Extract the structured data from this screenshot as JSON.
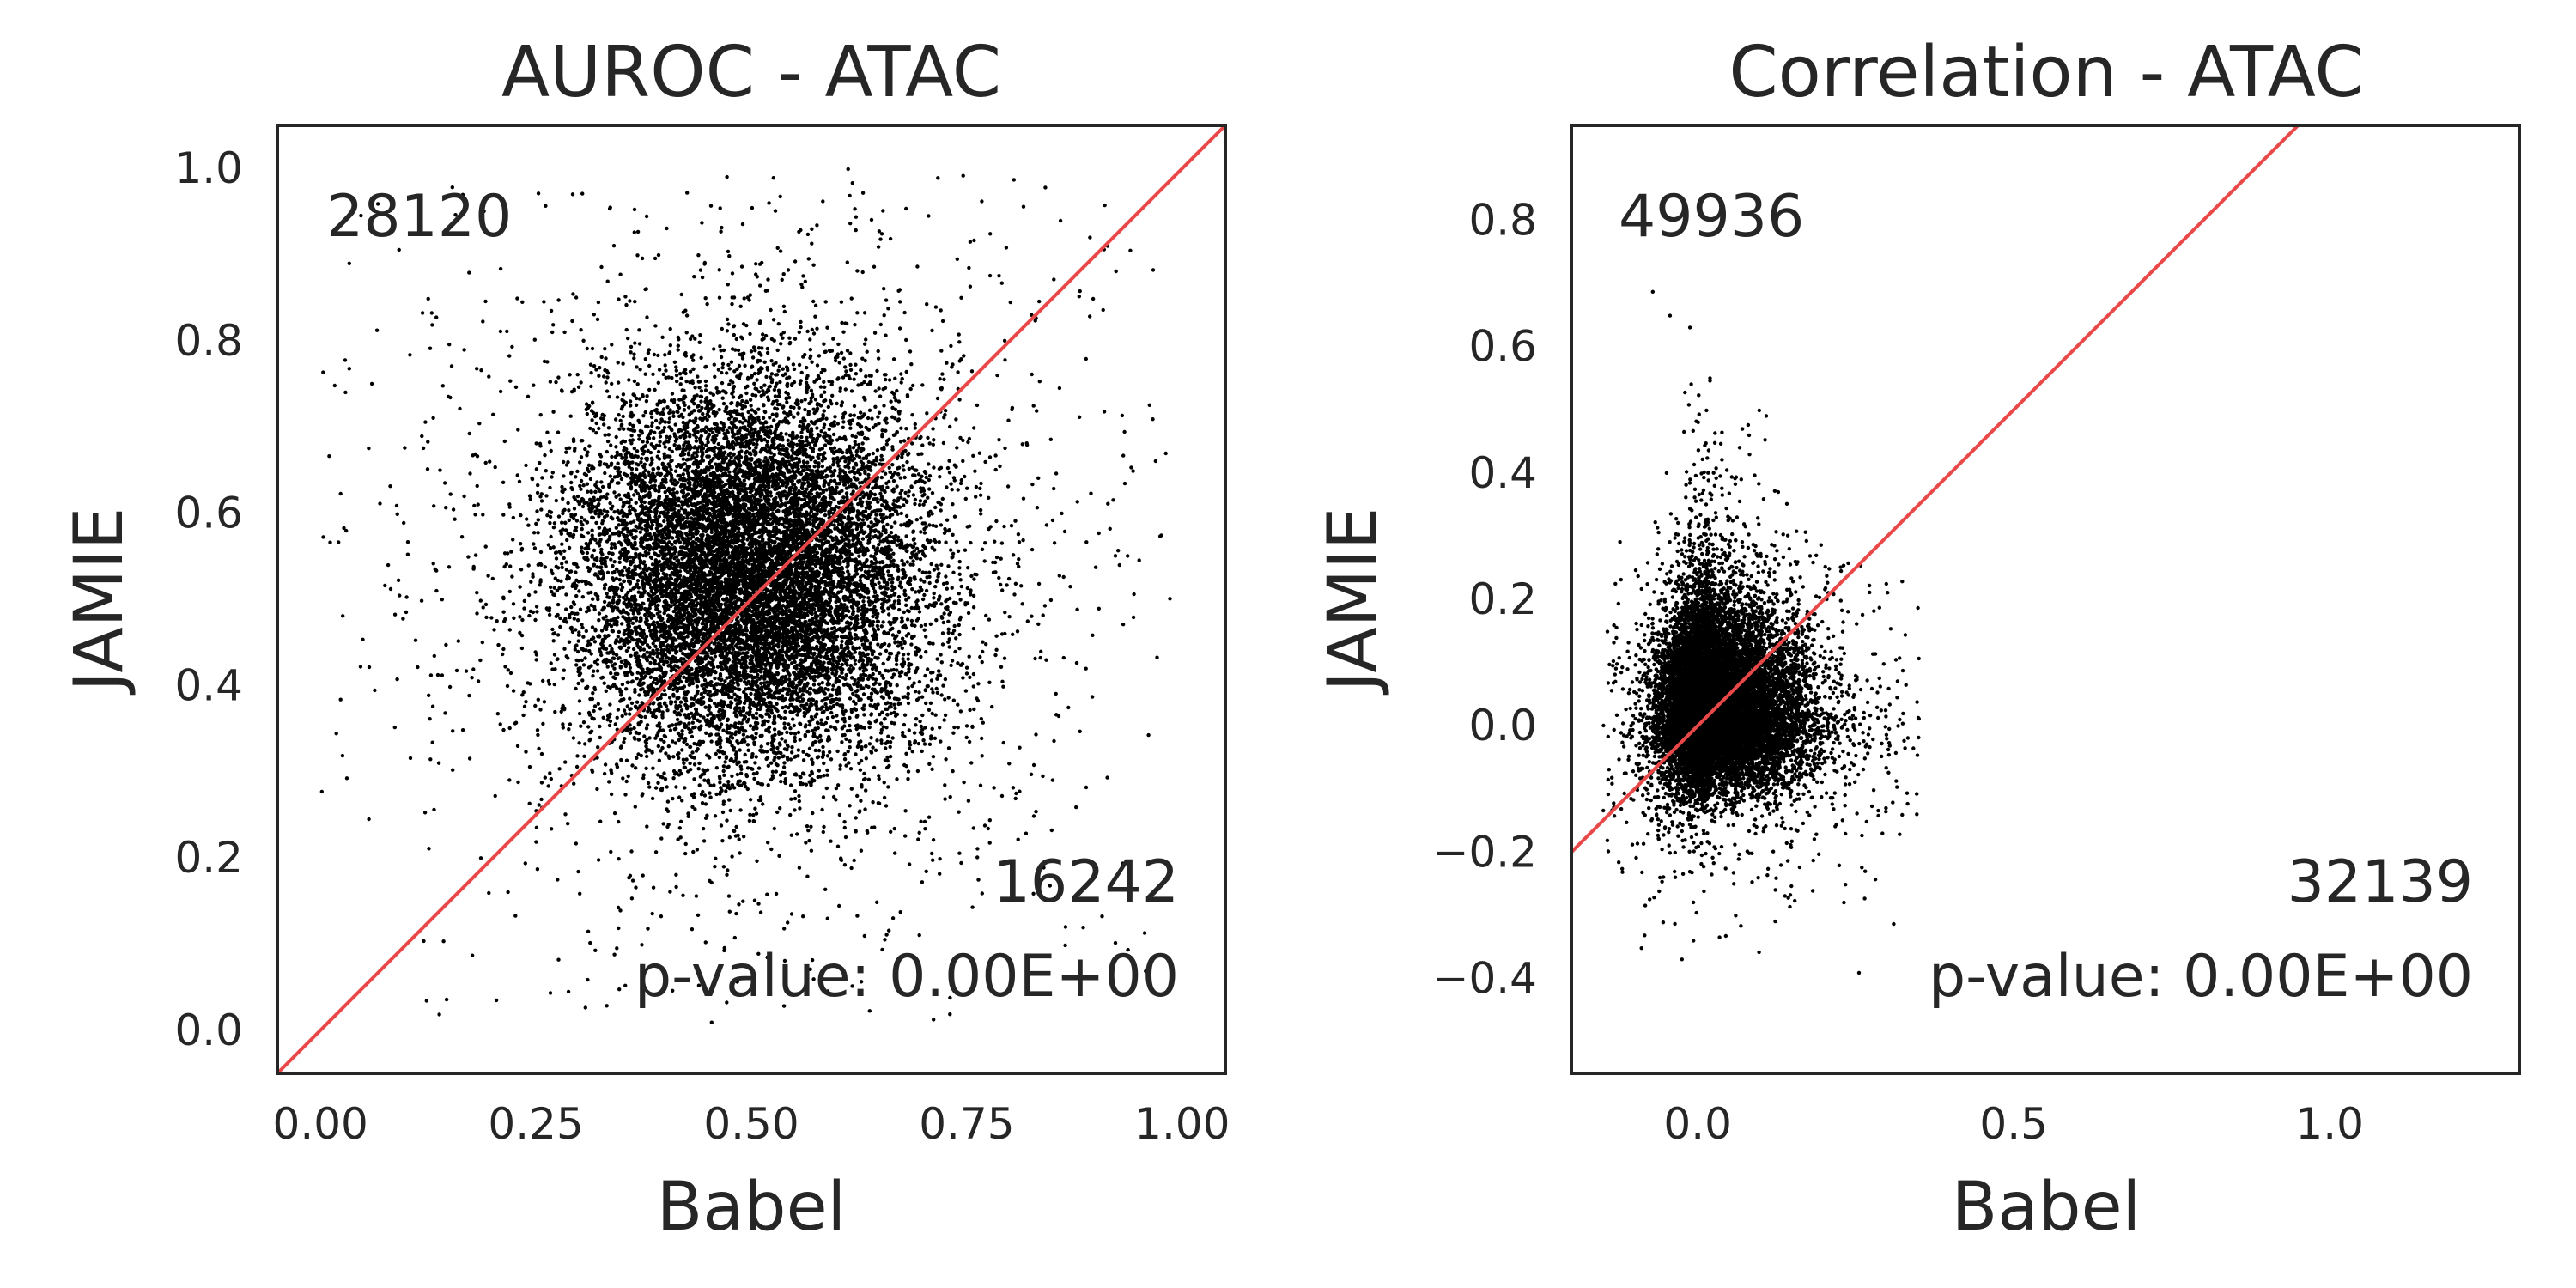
{
  "chart_data": [
    {
      "type": "scatter",
      "title": "AUROC - ATAC",
      "xlabel": "Babel",
      "ylabel": "JAMIE",
      "xlim": [
        -0.05,
        1.05
      ],
      "ylim": [
        -0.05,
        1.05
      ],
      "xticks": [
        0.0,
        0.25,
        0.5,
        0.75,
        1.0
      ],
      "xtick_labels": [
        "0.00",
        "0.25",
        "0.50",
        "0.75",
        "1.00"
      ],
      "yticks": [
        0.0,
        0.2,
        0.4,
        0.6,
        0.8,
        1.0
      ],
      "ytick_labels": [
        "0.0",
        "0.2",
        "0.4",
        "0.6",
        "0.8",
        "1.0"
      ],
      "grid": false,
      "reference_line": "y = x",
      "reference_line_color": "#ea4848",
      "point_color": "#000000",
      "count_above": "28120",
      "count_below": "16242",
      "p_value": "p-value: 0.00E+00",
      "point_cloud": {
        "x_center": 0.5,
        "y_center": 0.53,
        "x_spread": 0.1,
        "y_spread": 0.11,
        "x_range": [
          0.0,
          0.99
        ],
        "y_range": [
          0.0,
          1.0
        ],
        "n_points_drawn": 14000
      }
    },
    {
      "type": "scatter",
      "title": "Correlation - ATAC",
      "xlabel": "Babel",
      "ylabel": "JAMIE",
      "xlim": [
        -0.2,
        1.3
      ],
      "ylim": [
        -0.55,
        0.95
      ],
      "xticks": [
        0.0,
        0.5,
        1.0
      ],
      "xtick_labels": [
        "0.0",
        "0.5",
        "1.0"
      ],
      "yticks": [
        -0.4,
        -0.2,
        0.0,
        0.2,
        0.4,
        0.6,
        0.8
      ],
      "ytick_labels": [
        "−0.4",
        "−0.2",
        "0.0",
        "0.2",
        "0.4",
        "0.6",
        "0.8"
      ],
      "grid": false,
      "reference_line": "y = x",
      "reference_line_color": "#ea4848",
      "point_color": "#000000",
      "count_above": "49936",
      "count_below": "32139",
      "p_value": "p-value: 0.00E+00",
      "point_cloud": {
        "x_center": 0.02,
        "y_center": 0.02,
        "x_spread": 0.05,
        "y_spread": 0.07,
        "x_range": [
          -0.15,
          0.35
        ],
        "y_range": [
          -0.5,
          0.87
        ],
        "n_points_drawn": 14000
      }
    }
  ]
}
